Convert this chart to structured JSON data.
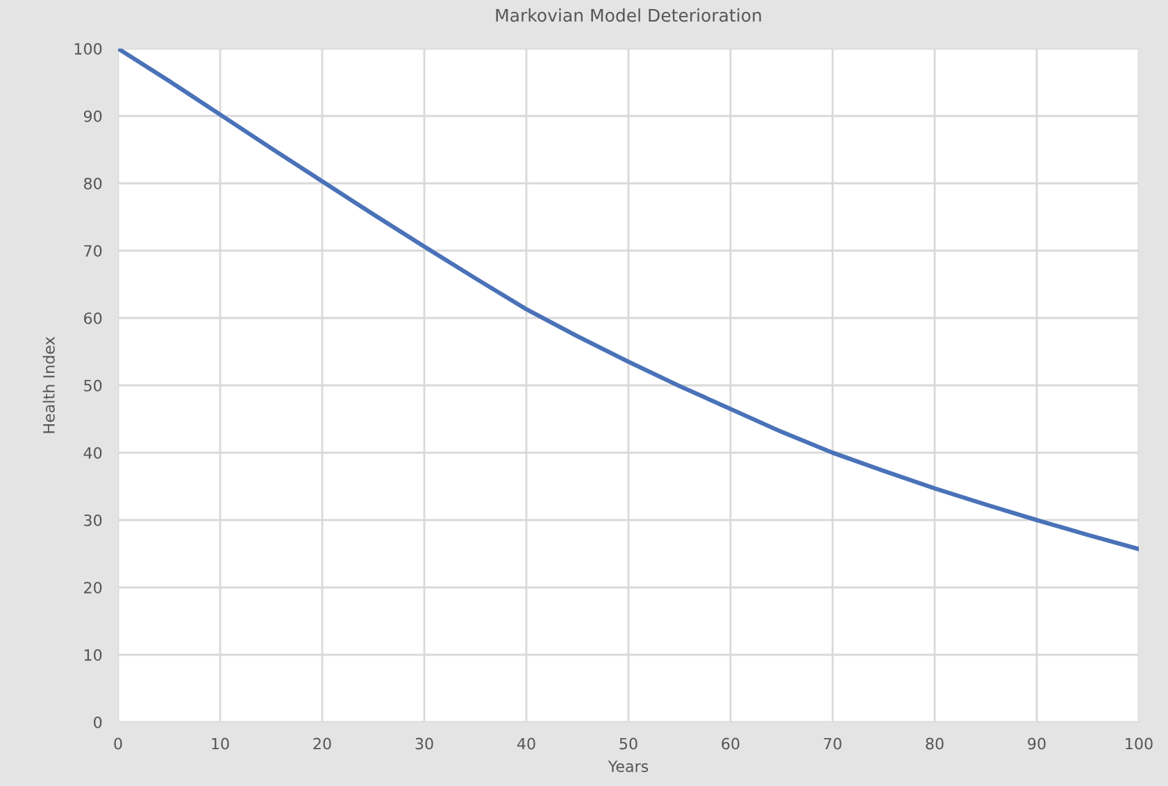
{
  "chart_data": {
    "type": "line",
    "title": "Markovian Model Deterioration",
    "xlabel": "Years",
    "ylabel": "Health Index",
    "x": [
      0,
      5,
      10,
      15,
      20,
      25,
      30,
      35,
      40,
      45,
      50,
      55,
      60,
      65,
      70,
      75,
      80,
      85,
      90,
      95,
      100
    ],
    "series": [
      {
        "color": "#4a72b8",
        "values": [
          100,
          95.2,
          90.2,
          85.2,
          80.3,
          75.4,
          70.6,
          65.9,
          61.3,
          57.3,
          53.5,
          49.9,
          46.5,
          43.1,
          40,
          37.3,
          34.7,
          32.3,
          30,
          27.8,
          25.7
        ]
      }
    ],
    "xlim": [
      0,
      100
    ],
    "xticks": [
      0,
      10,
      20,
      30,
      40,
      50,
      60,
      70,
      80,
      90,
      100
    ],
    "ylim": [
      0,
      100
    ],
    "yticks": [
      0,
      10,
      20,
      30,
      40,
      50,
      60,
      70,
      80,
      90,
      100
    ],
    "grid": true,
    "marker": "none",
    "line_style": "solid"
  }
}
